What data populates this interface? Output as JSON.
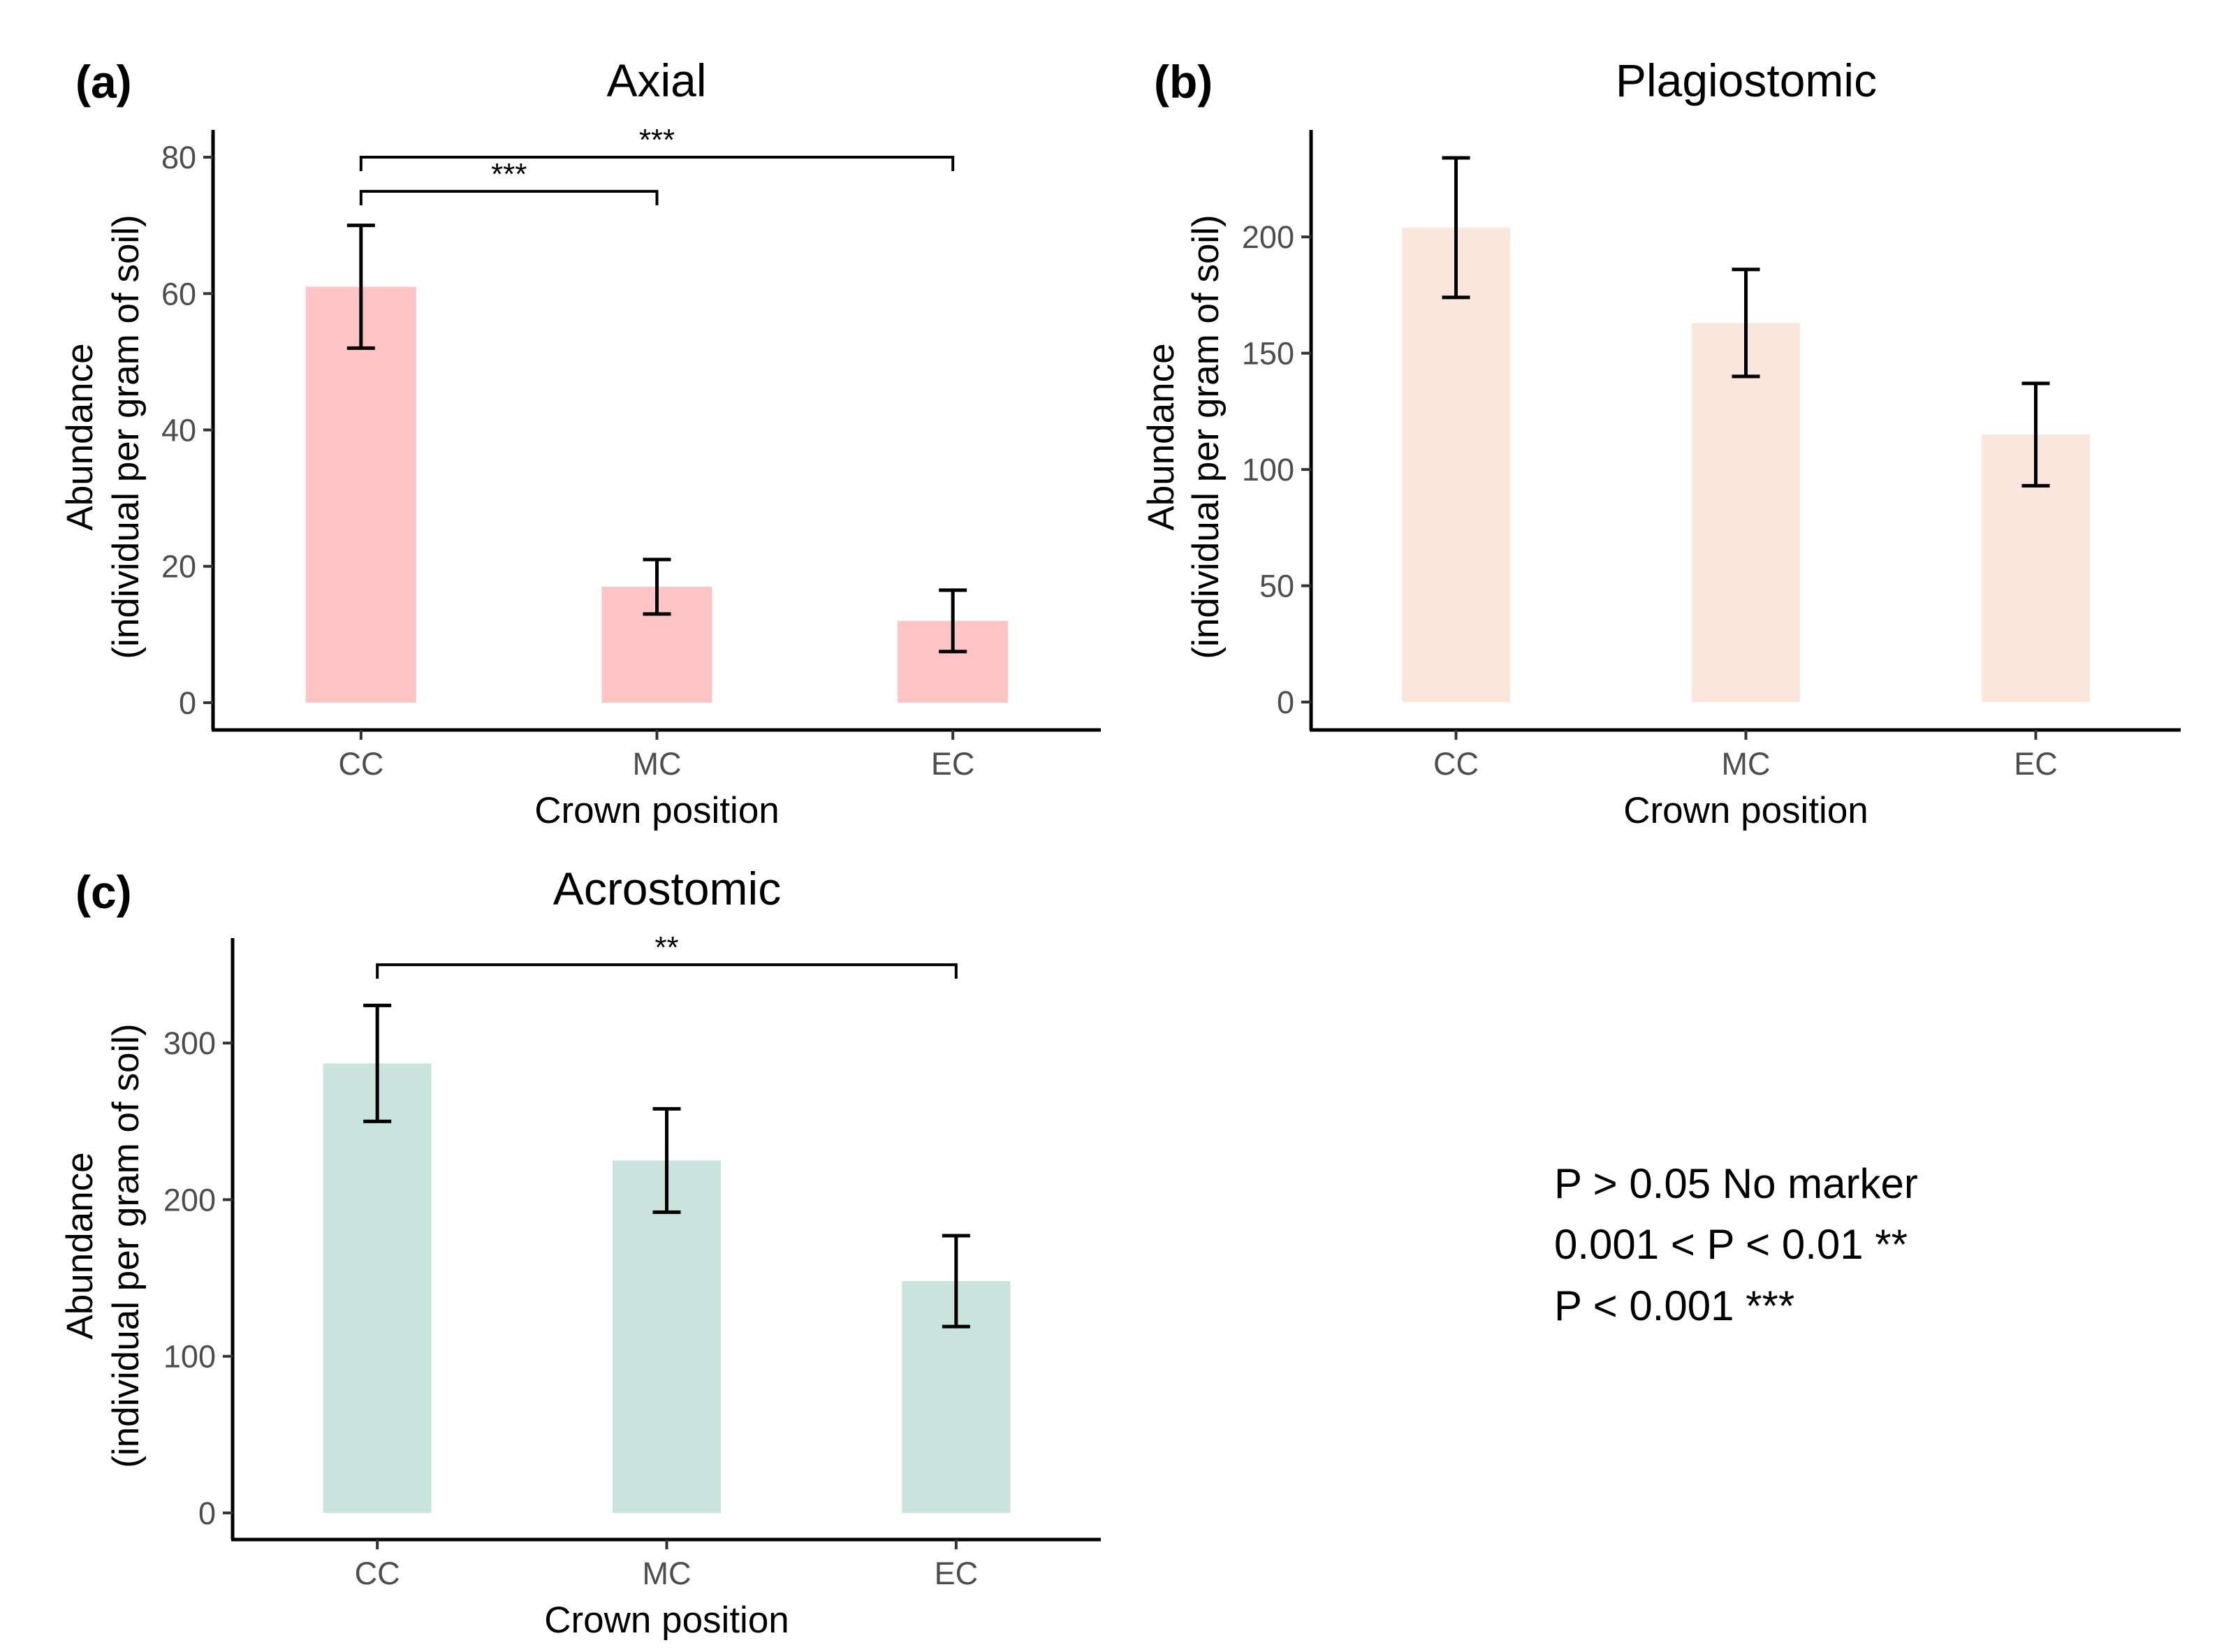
{
  "legend": {
    "lines": [
      "P > 0.05 No marker",
      "0.001 < P < 0.01 **",
      "P < 0.001 ***"
    ]
  },
  "chart_data": [
    {
      "type": "bar",
      "panel": "(a)",
      "title": "Axial",
      "xlabel": "Crown position",
      "ylabel_line1": "Abundance",
      "ylabel_line2": "(individual per gram of soil)",
      "categories": [
        "CC",
        "MC",
        "EC"
      ],
      "values": [
        61,
        17,
        12
      ],
      "errors": [
        9,
        4,
        4.5
      ],
      "ylim": [
        -4,
        84
      ],
      "yticks": [
        0,
        20,
        40,
        60,
        80
      ],
      "color": "#ffc4c5",
      "significance": [
        {
          "from": "CC",
          "to": "MC",
          "y": 75,
          "label": "***"
        },
        {
          "from": "CC",
          "to": "EC",
          "y": 80,
          "label": "***"
        }
      ]
    },
    {
      "type": "bar",
      "panel": "(b)",
      "title": "Plagiostomic",
      "xlabel": "Crown position",
      "ylabel_line1": "Abundance",
      "ylabel_line2": "(individual per gram of soil)",
      "categories": [
        "CC",
        "MC",
        "EC"
      ],
      "values": [
        204,
        163,
        115
      ],
      "errors": [
        30,
        23,
        22
      ],
      "ylim": [
        -12,
        246
      ],
      "yticks": [
        0,
        50,
        100,
        150,
        200
      ],
      "color": "#fbe6de",
      "significance": []
    },
    {
      "type": "bar",
      "panel": "(c)",
      "title": "Acrostomic",
      "xlabel": "Crown position",
      "ylabel_line1": "Abundance",
      "ylabel_line2": "(individual per gram of soil)",
      "categories": [
        "CC",
        "MC",
        "EC"
      ],
      "values": [
        287,
        225,
        148
      ],
      "errors": [
        37,
        33,
        29
      ],
      "ylim": [
        -17,
        367
      ],
      "yticks": [
        0,
        100,
        200,
        300
      ],
      "color": "#c9e4dc",
      "significance": [
        {
          "from": "CC",
          "to": "EC",
          "y": 350,
          "label": "**"
        }
      ]
    }
  ]
}
